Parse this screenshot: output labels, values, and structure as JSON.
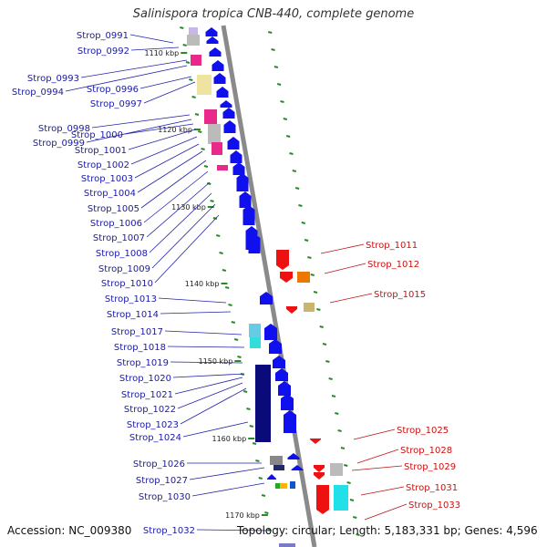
{
  "title": "Salinispora tropica CNB-440, complete genome",
  "accession": "Accession: NC_009380",
  "summary": "Topology: circular; Length: 5,183,331 bp; Genes: 4,596",
  "colors": {
    "blue_label": "#1a1aa8",
    "red_label": "#cc1111",
    "track": "#8a8a8a",
    "forward_gene": "#1010ee",
    "reverse_gene": "#ee1111",
    "tick": "#2a8a2a"
  },
  "scale_labels": [
    "1110 kbp",
    "1120 kbp",
    "1130 kbp",
    "1140 kbp",
    "1150 kbp",
    "1160 kbp",
    "1170 kbp"
  ],
  "left_genes": [
    "Strop_0991",
    "Strop_0992",
    "Strop_0993",
    "Strop_0994",
    "Strop_0996",
    "Strop_0997",
    "Strop_0998",
    "Strop_0999",
    "Strop_1000",
    "Strop_1001",
    "Strop_1002",
    "Strop_1003",
    "Strop_1004",
    "Strop_1005",
    "Strop_1006",
    "Strop_1007",
    "Strop_1008",
    "Strop_1009",
    "Strop_1010",
    "Strop_1013",
    "Strop_1014",
    "Strop_1017",
    "Strop_1018",
    "Strop_1019",
    "Strop_1020",
    "Strop_1021",
    "Strop_1022",
    "Strop_1023",
    "Strop_1024",
    "Strop_1026",
    "Strop_1027",
    "Strop_1030",
    "Strop_1032"
  ],
  "right_genes": [
    "Strop_1011",
    "Strop_1012",
    "Strop_1015",
    "Strop_1025",
    "Strop_1028",
    "Strop_1029",
    "Strop_1031",
    "Strop_1033"
  ]
}
